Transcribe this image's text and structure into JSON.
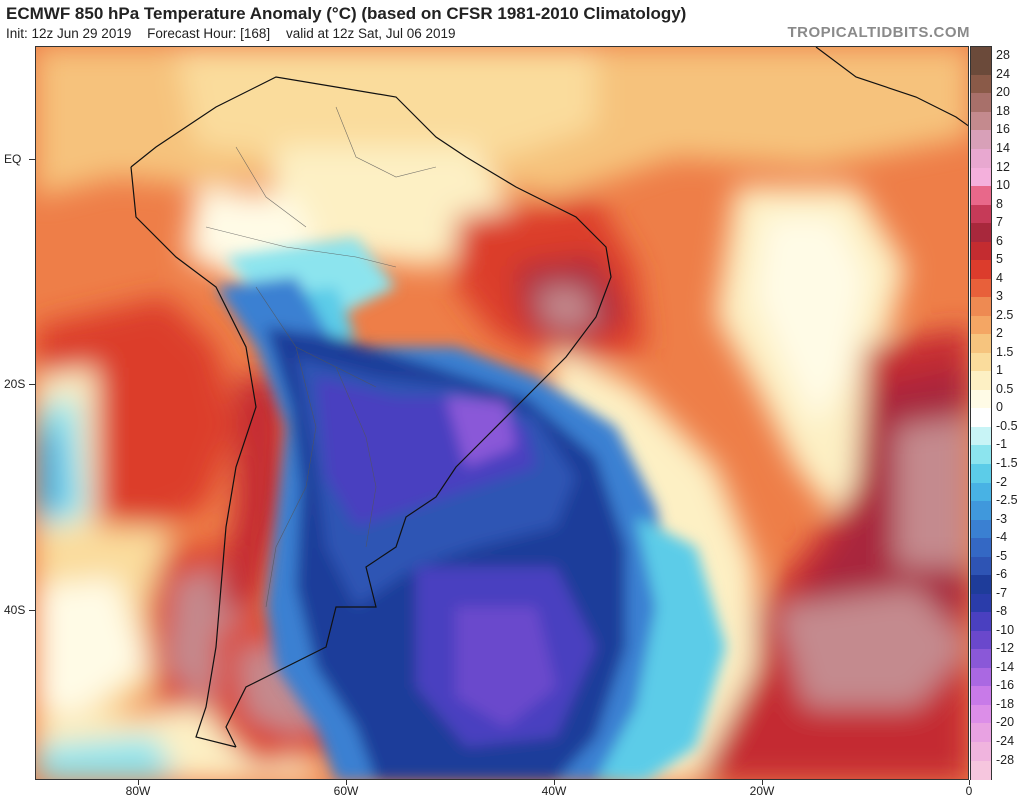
{
  "header": {
    "title": "ECMWF 850 hPa Temperature Anomaly (°C) (based on CFSR 1981-2010 Climatology)",
    "init": "Init: 12z Jun 29 2019",
    "forecast_hour": "Forecast Hour: [168]",
    "valid": "valid at 12z Sat, Jul 06 2019",
    "brand": "TROPICALTIDBITS.COM"
  },
  "axes": {
    "lat_labels": [
      "EQ",
      "20S",
      "40S"
    ],
    "lon_labels": [
      "80W",
      "60W",
      "40W",
      "20W",
      "0"
    ]
  },
  "colorbar": {
    "labels": [
      "28",
      "24",
      "20",
      "18",
      "16",
      "14",
      "12",
      "10",
      "8",
      "7",
      "6",
      "5",
      "4",
      "3",
      "2.5",
      "2",
      "1.5",
      "1",
      "0.5",
      "0",
      "-0.5",
      "-1",
      "-1.5",
      "-2",
      "-2.5",
      "-3",
      "-4",
      "-5",
      "-6",
      "-7",
      "-8",
      "-10",
      "-12",
      "-14",
      "-16",
      "-18",
      "-20",
      "-24",
      "-28"
    ],
    "colors": [
      "#6b4a3a",
      "#8a5a48",
      "#a8706a",
      "#c48a8e",
      "#d8a0b8",
      "#e8a8d0",
      "#f4b0dc",
      "#e8688a",
      "#c63a58",
      "#a8283c",
      "#c42c30",
      "#dc3c2c",
      "#e8603a",
      "#ee8a52",
      "#f4a664",
      "#f6c47e",
      "#fadc9c",
      "#fdf0c4",
      "#fffbe6",
      "#ffffff",
      "#c8f4f6",
      "#8ce4ee",
      "#5ccce8",
      "#48b2e4",
      "#4098dc",
      "#3a80d2",
      "#3468c4",
      "#2e54b4",
      "#1e3c9a",
      "#2a3caa",
      "#4a40c0",
      "#6a48cc",
      "#8a58d8",
      "#aa68e2",
      "#c87ae8",
      "#dc8ee8",
      "#e8a2e2",
      "#f0b4de",
      "#f6c6de"
    ]
  }
}
